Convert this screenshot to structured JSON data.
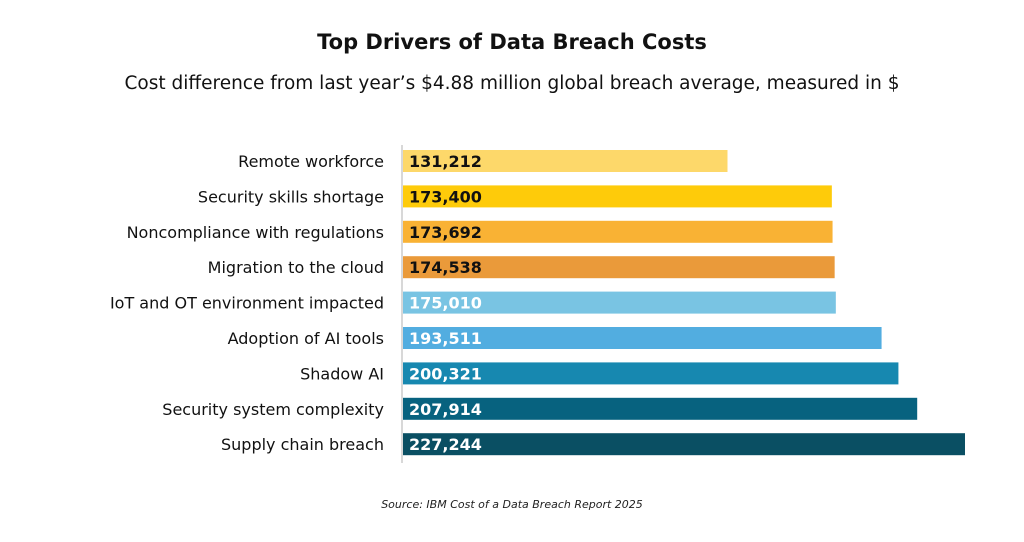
{
  "chart_data": {
    "type": "bar",
    "orientation": "horizontal",
    "title": "Top Drivers of Data Breach Costs",
    "subtitle": "Cost difference from last year’s $4.88 million global breach average, measured in $",
    "source": "Source: IBM Cost of a Data Breach Report 2025",
    "categories": [
      "Remote workforce",
      "Security skills shortage",
      "Noncompliance with regulations",
      "Migration to the cloud",
      "IoT and OT environment impacted",
      "Adoption of AI tools",
      "Shadow AI",
      "Security system complexity",
      "Supply chain breach"
    ],
    "values": [
      131212,
      173400,
      173692,
      174538,
      175010,
      193511,
      200321,
      207914,
      227244
    ],
    "data_labels": [
      "131,212",
      "173,400",
      "173,692",
      "174,538",
      "175,010",
      "193,511",
      "200,321",
      "207,914",
      "227,244"
    ],
    "colors": [
      "#fdd86a",
      "#fecb0a",
      "#f9b234",
      "#ea9a3a",
      "#79c4e3",
      "#52ade0",
      "#1788b0",
      "#07627f",
      "#0a4f63"
    ],
    "label_colors": [
      "#111111",
      "#111111",
      "#111111",
      "#111111",
      "#ffffff",
      "#ffffff",
      "#ffffff",
      "#ffffff",
      "#ffffff"
    ],
    "xlim": [
      0,
      227244
    ],
    "grid": false,
    "legend": "none"
  }
}
